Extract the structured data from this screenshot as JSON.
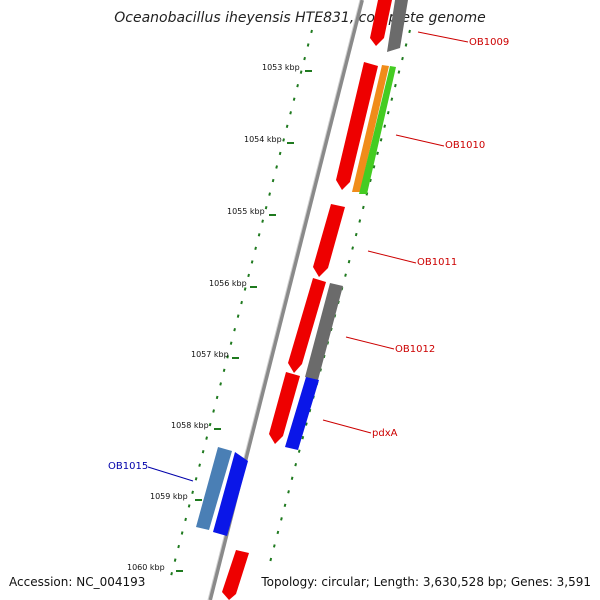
{
  "title": "Oceanobacillus iheyensis HTE831, complete genome",
  "accession": "Accession: NC_004193",
  "topology": "Topology: circular; Length: 3,630,528 bp; Genes: 3,591",
  "colors": {
    "backbone": "#8a8a8a",
    "tick": "#1f7a1f",
    "label_red": "#cc0000",
    "label_blue": "#0000aa"
  },
  "ruler_labels": [
    "1053 kbp",
    "1054 kbp",
    "1055 kbp",
    "1056 kbp",
    "1057 kbp",
    "1058 kbp",
    "1059 kbp",
    "1060 kbp"
  ],
  "gene_labels": [
    "OB1009",
    "OB1010",
    "OB1011",
    "OB1012",
    "pdxA",
    "OB1015"
  ]
}
